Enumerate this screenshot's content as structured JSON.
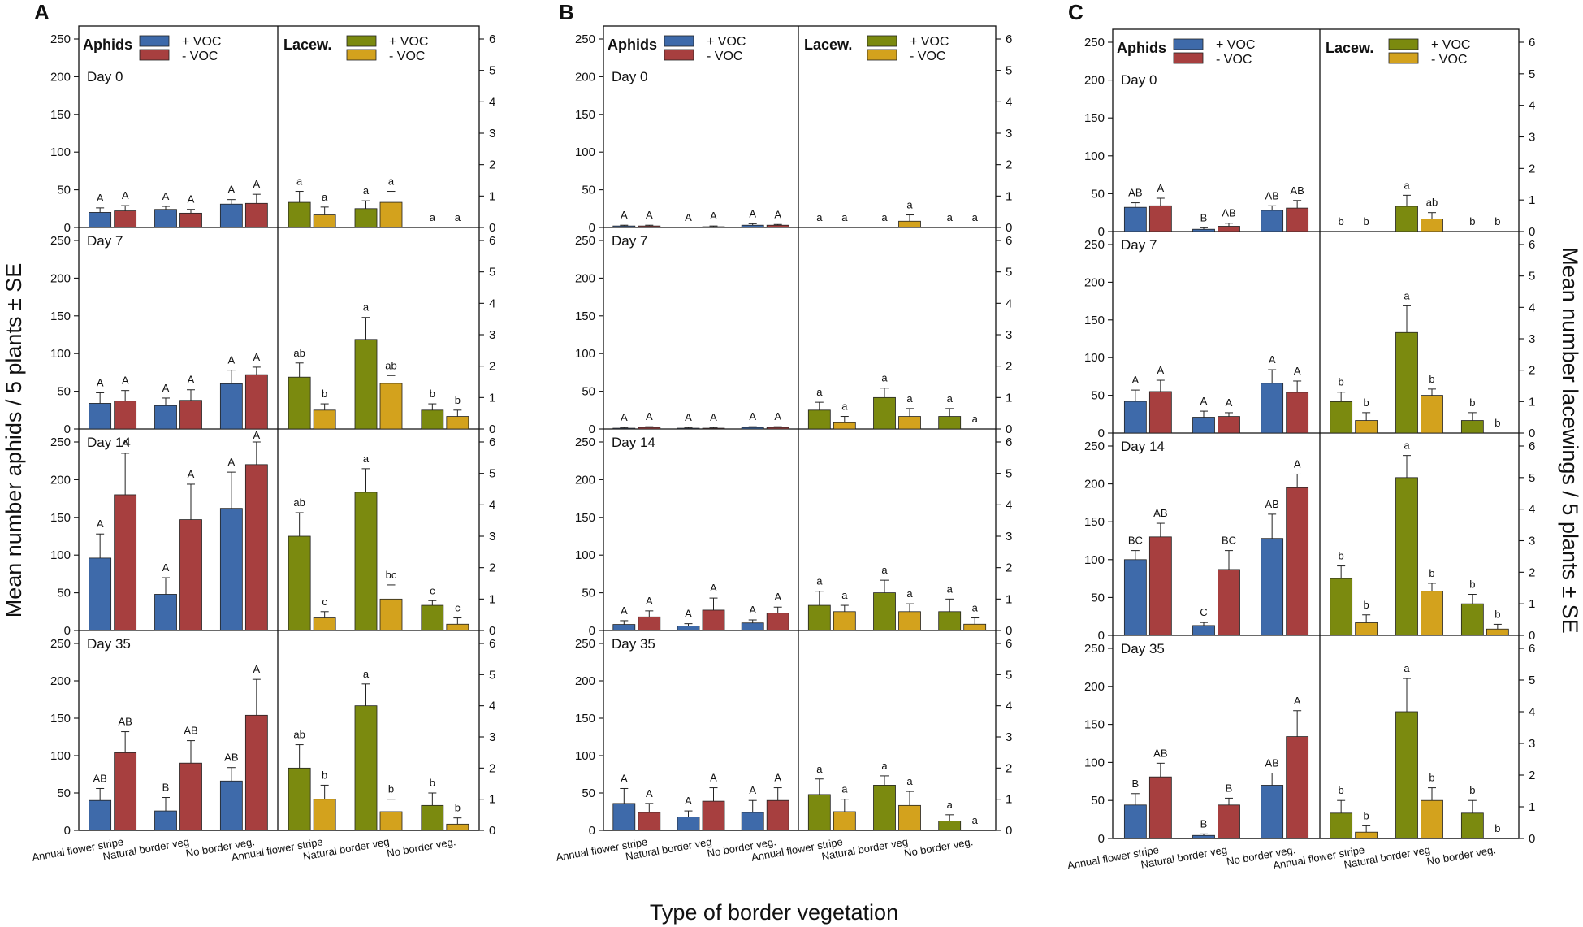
{
  "chart_data": {
    "type": "bar",
    "panel_letters": [
      "A",
      "B",
      "C"
    ],
    "y_label_left": "Mean number aphids / 5 plants ± SE",
    "y_label_right": "Mean number lacewings / 5 plants ± SE",
    "x_label": "Type of border vegetation",
    "categories": [
      "Annual flower stripe",
      "Natural border veg",
      "No border veg."
    ],
    "aphid_axis": {
      "min": 0,
      "max": 250,
      "ticks": [
        "0",
        "50",
        "100",
        "150",
        "200",
        "250"
      ]
    },
    "lacewing_axis": {
      "min": 0,
      "max": 6,
      "ticks": [
        "0",
        "1",
        "2",
        "3",
        "4",
        "5",
        "6"
      ]
    },
    "legend": {
      "aphids_title": "Aphids",
      "lacewings_title": "Lacew.",
      "plus_voc": "+ VOC",
      "minus_voc": "- VOC"
    },
    "colors": {
      "aphid_plus": "#3e6aaa",
      "aphid_minus": "#a73f3f",
      "lacewing_plus": "#7b8a0f",
      "lacewing_minus": "#d3a21d"
    },
    "panels": [
      {
        "letter": "A",
        "days": [
          {
            "label": "Day 0",
            "aphids": {
              "plus": [
                20,
                24,
                31
              ],
              "plus_se": [
                6,
                4,
                6
              ],
              "minus": [
                22,
                19,
                32
              ],
              "minus_se": [
                7,
                5,
                12
              ],
              "sig_plus": [
                "A",
                "A",
                "A"
              ],
              "sig_minus": [
                "A",
                "A",
                "A"
              ]
            },
            "lacewings": {
              "plus": [
                0.8,
                0.6,
                0
              ],
              "plus_se": [
                0.35,
                0.25,
                0
              ],
              "minus": [
                0.4,
                0.8,
                0
              ],
              "minus_se": [
                0.25,
                0.35,
                0
              ],
              "sig_plus": [
                "a",
                "a",
                "a"
              ],
              "sig_minus": [
                "a",
                "a",
                "a"
              ]
            }
          },
          {
            "label": "Day 7",
            "aphids": {
              "plus": [
                34,
                31,
                60
              ],
              "plus_se": [
                14,
                10,
                18
              ],
              "minus": [
                37,
                38,
                72
              ],
              "minus_se": [
                14,
                14,
                10
              ],
              "sig_plus": [
                "A",
                "A",
                "A"
              ],
              "sig_minus": [
                "A",
                "A",
                "A"
              ]
            },
            "lacewings": {
              "plus": [
                1.65,
                2.85,
                0.6
              ],
              "plus_se": [
                0.45,
                0.7,
                0.2
              ],
              "minus": [
                0.6,
                1.45,
                0.4
              ],
              "minus_se": [
                0.2,
                0.25,
                0.2
              ],
              "sig_plus": [
                "ab",
                "a",
                "b"
              ],
              "sig_minus": [
                "b",
                "ab",
                "b"
              ]
            }
          },
          {
            "label": "Day 14",
            "aphids": {
              "plus": [
                96,
                48,
                162
              ],
              "plus_se": [
                32,
                22,
                48
              ],
              "minus": [
                180,
                147,
                220
              ],
              "minus_se": [
                55,
                47,
                30
              ],
              "sig_plus": [
                "A",
                "A",
                "A"
              ],
              "sig_minus": [
                "A",
                "A",
                "A"
              ]
            },
            "lacewings": {
              "plus": [
                3.0,
                4.4,
                0.8
              ],
              "plus_se": [
                0.75,
                0.75,
                0.15
              ],
              "minus": [
                0.4,
                1.0,
                0.2
              ],
              "minus_se": [
                0.2,
                0.45,
                0.2
              ],
              "sig_plus": [
                "ab",
                "a",
                "c"
              ],
              "sig_minus": [
                "c",
                "bc",
                "c"
              ]
            }
          },
          {
            "label": "Day 35",
            "aphids": {
              "plus": [
                40,
                26,
                66
              ],
              "plus_se": [
                16,
                18,
                18
              ],
              "minus": [
                104,
                90,
                154
              ],
              "minus_se": [
                28,
                30,
                48
              ],
              "sig_plus": [
                "AB",
                "B",
                "AB"
              ],
              "sig_minus": [
                "AB",
                "AB",
                "A"
              ]
            },
            "lacewings": {
              "plus": [
                2.0,
                4.0,
                0.8
              ],
              "plus_se": [
                0.75,
                0.7,
                0.4
              ],
              "minus": [
                1.0,
                0.6,
                0.2
              ],
              "minus_se": [
                0.45,
                0.4,
                0.2
              ],
              "sig_plus": [
                "ab",
                "a",
                "b"
              ],
              "sig_minus": [
                "b",
                "b",
                "b"
              ]
            }
          }
        ]
      },
      {
        "letter": "B",
        "days": [
          {
            "label": "Day 0",
            "aphids": {
              "plus": [
                2,
                0,
                3
              ],
              "plus_se": [
                1,
                0,
                2
              ],
              "minus": [
                2,
                1,
                3
              ],
              "minus_se": [
                1,
                1,
                1
              ],
              "sig_plus": [
                "A",
                "A",
                "A"
              ],
              "sig_minus": [
                "A",
                "A",
                "A"
              ]
            },
            "lacewings": {
              "plus": [
                0,
                0,
                0
              ],
              "plus_se": [
                0,
                0,
                0
              ],
              "minus": [
                0,
                0.2,
                0
              ],
              "minus_se": [
                0,
                0.2,
                0
              ],
              "sig_plus": [
                "a",
                "a",
                "a"
              ],
              "sig_minus": [
                "a",
                "a",
                "a"
              ]
            }
          },
          {
            "label": "Day 7",
            "aphids": {
              "plus": [
                1,
                1,
                2
              ],
              "plus_se": [
                1,
                1,
                1
              ],
              "minus": [
                2,
                1,
                2
              ],
              "minus_se": [
                1,
                1,
                1
              ],
              "sig_plus": [
                "A",
                "A",
                "A"
              ],
              "sig_minus": [
                "A",
                "A",
                "A"
              ]
            },
            "lacewings": {
              "plus": [
                0.6,
                1.0,
                0.4
              ],
              "plus_se": [
                0.25,
                0.3,
                0.25
              ],
              "minus": [
                0.2,
                0.4,
                0
              ],
              "minus_se": [
                0.2,
                0.25,
                0
              ],
              "sig_plus": [
                "a",
                "a",
                "a"
              ],
              "sig_minus": [
                "a",
                "a",
                "a"
              ]
            }
          },
          {
            "label": "Day 14",
            "aphids": {
              "plus": [
                8,
                6,
                10
              ],
              "plus_se": [
                5,
                3,
                4
              ],
              "minus": [
                18,
                27,
                23
              ],
              "minus_se": [
                8,
                16,
                8
              ],
              "sig_plus": [
                "A",
                "A",
                "A"
              ],
              "sig_minus": [
                "A",
                "A",
                "A"
              ]
            },
            "lacewings": {
              "plus": [
                0.8,
                1.2,
                0.6
              ],
              "plus_se": [
                0.45,
                0.4,
                0.4
              ],
              "minus": [
                0.6,
                0.6,
                0.2
              ],
              "minus_se": [
                0.2,
                0.25,
                0.2
              ],
              "sig_plus": [
                "a",
                "a",
                "a"
              ],
              "sig_minus": [
                "a",
                "a",
                "a"
              ]
            }
          },
          {
            "label": "Day 35",
            "aphids": {
              "plus": [
                36,
                18,
                24
              ],
              "plus_se": [
                20,
                8,
                16
              ],
              "minus": [
                24,
                39,
                40
              ],
              "minus_se": [
                12,
                18,
                17
              ],
              "sig_plus": [
                "A",
                "A",
                "A"
              ],
              "sig_minus": [
                "A",
                "A",
                "A"
              ]
            },
            "lacewings": {
              "plus": [
                1.15,
                1.45,
                0.3
              ],
              "plus_se": [
                0.5,
                0.3,
                0.2
              ],
              "minus": [
                0.6,
                0.8,
                0
              ],
              "minus_se": [
                0.4,
                0.45,
                0
              ],
              "sig_plus": [
                "a",
                "a",
                "a"
              ],
              "sig_minus": [
                "a",
                "a",
                "a"
              ]
            }
          }
        ]
      },
      {
        "letter": "C",
        "days": [
          {
            "label": "Day 0",
            "aphids": {
              "plus": [
                32,
                3,
                28
              ],
              "plus_se": [
                6,
                2,
                6
              ],
              "minus": [
                34,
                7,
                31
              ],
              "minus_se": [
                10,
                4,
                10
              ],
              "sig_plus": [
                "AB",
                "B",
                "AB"
              ],
              "sig_minus": [
                "A",
                "AB",
                "AB"
              ]
            },
            "lacewings": {
              "plus": [
                0,
                0.8,
                0
              ],
              "plus_se": [
                0,
                0.35,
                0
              ],
              "minus": [
                0,
                0.4,
                0
              ],
              "minus_se": [
                0,
                0.2,
                0
              ],
              "sig_plus": [
                "b",
                "a",
                "b"
              ],
              "sig_minus": [
                "b",
                "ab",
                "b"
              ]
            }
          },
          {
            "label": "Day 7",
            "aphids": {
              "plus": [
                42,
                21,
                66
              ],
              "plus_se": [
                15,
                8,
                18
              ],
              "minus": [
                55,
                22,
                54
              ],
              "minus_se": [
                15,
                5,
                15
              ],
              "sig_plus": [
                "A",
                "A",
                "A"
              ],
              "sig_minus": [
                "A",
                "A",
                "A"
              ]
            },
            "lacewings": {
              "plus": [
                1.0,
                3.2,
                0.4
              ],
              "plus_se": [
                0.3,
                0.85,
                0.25
              ],
              "minus": [
                0.4,
                1.2,
                0
              ],
              "minus_se": [
                0.25,
                0.2,
                0
              ],
              "sig_plus": [
                "b",
                "a",
                "b"
              ],
              "sig_minus": [
                "b",
                "b",
                "b"
              ]
            }
          },
          {
            "label": "Day 14",
            "aphids": {
              "plus": [
                100,
                13,
                128
              ],
              "plus_se": [
                12,
                4,
                32
              ],
              "minus": [
                130,
                87,
                195
              ],
              "minus_se": [
                18,
                25,
                18
              ],
              "sig_plus": [
                "BC",
                "C",
                "AB"
              ],
              "sig_minus": [
                "AB",
                "BC",
                "A"
              ]
            },
            "lacewings": {
              "plus": [
                1.8,
                5.0,
                1.0
              ],
              "plus_se": [
                0.4,
                0.7,
                0.3
              ],
              "minus": [
                0.4,
                1.4,
                0.2
              ],
              "minus_se": [
                0.25,
                0.25,
                0.15
              ],
              "sig_plus": [
                "b",
                "a",
                "b"
              ],
              "sig_minus": [
                "b",
                "b",
                "b"
              ]
            }
          },
          {
            "label": "Day 35",
            "aphids": {
              "plus": [
                44,
                4,
                70
              ],
              "plus_se": [
                15,
                2,
                16
              ],
              "minus": [
                81,
                44,
                134
              ],
              "minus_se": [
                18,
                9,
                34
              ],
              "sig_plus": [
                "B",
                "B",
                "AB"
              ],
              "sig_minus": [
                "AB",
                "B",
                "A"
              ]
            },
            "lacewings": {
              "plus": [
                0.8,
                4.0,
                0.8
              ],
              "plus_se": [
                0.4,
                1.05,
                0.4
              ],
              "minus": [
                0.2,
                1.2,
                0
              ],
              "minus_se": [
                0.2,
                0.4,
                0
              ],
              "sig_plus": [
                "b",
                "a",
                "b"
              ],
              "sig_minus": [
                "b",
                "b",
                "b"
              ]
            }
          }
        ]
      }
    ]
  }
}
